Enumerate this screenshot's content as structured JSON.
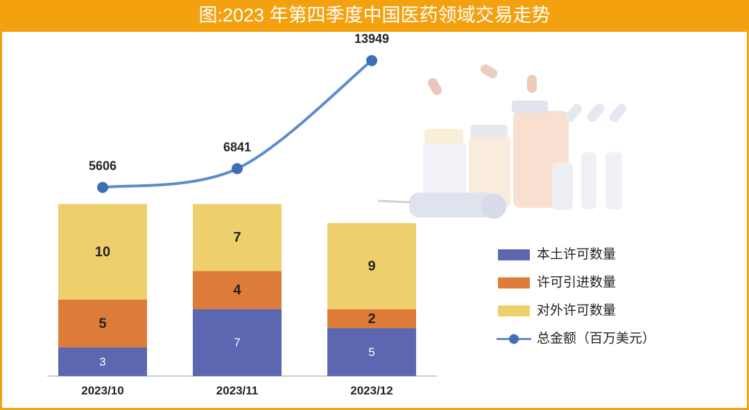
{
  "chart_data": {
    "type": "bar",
    "stacked": true,
    "title": "图:2023 年第四季度中国医药领域交易走势",
    "categories": [
      "2023/10",
      "2023/11",
      "2023/12"
    ],
    "series": [
      {
        "name": "本土许可数量",
        "type": "bar",
        "color": "#5b67b1",
        "values": [
          3,
          7,
          5
        ]
      },
      {
        "name": "许可引进数量",
        "type": "bar",
        "color": "#dd7b39",
        "values": [
          5,
          4,
          2
        ]
      },
      {
        "name": "对外许可数量",
        "type": "bar",
        "color": "#edd06c",
        "values": [
          10,
          7,
          9
        ]
      },
      {
        "name": "总金额（百万美元）",
        "type": "line",
        "axis": "y2",
        "color": "#5b8ccb",
        "marker_color": "#3f6fb6",
        "values": [
          5606,
          6841,
          13949
        ]
      }
    ],
    "ylim": [
      0,
      35
    ],
    "y2lim": [
      -6800,
      15200
    ],
    "legend": "right",
    "header_color": "#f4a10f"
  }
}
